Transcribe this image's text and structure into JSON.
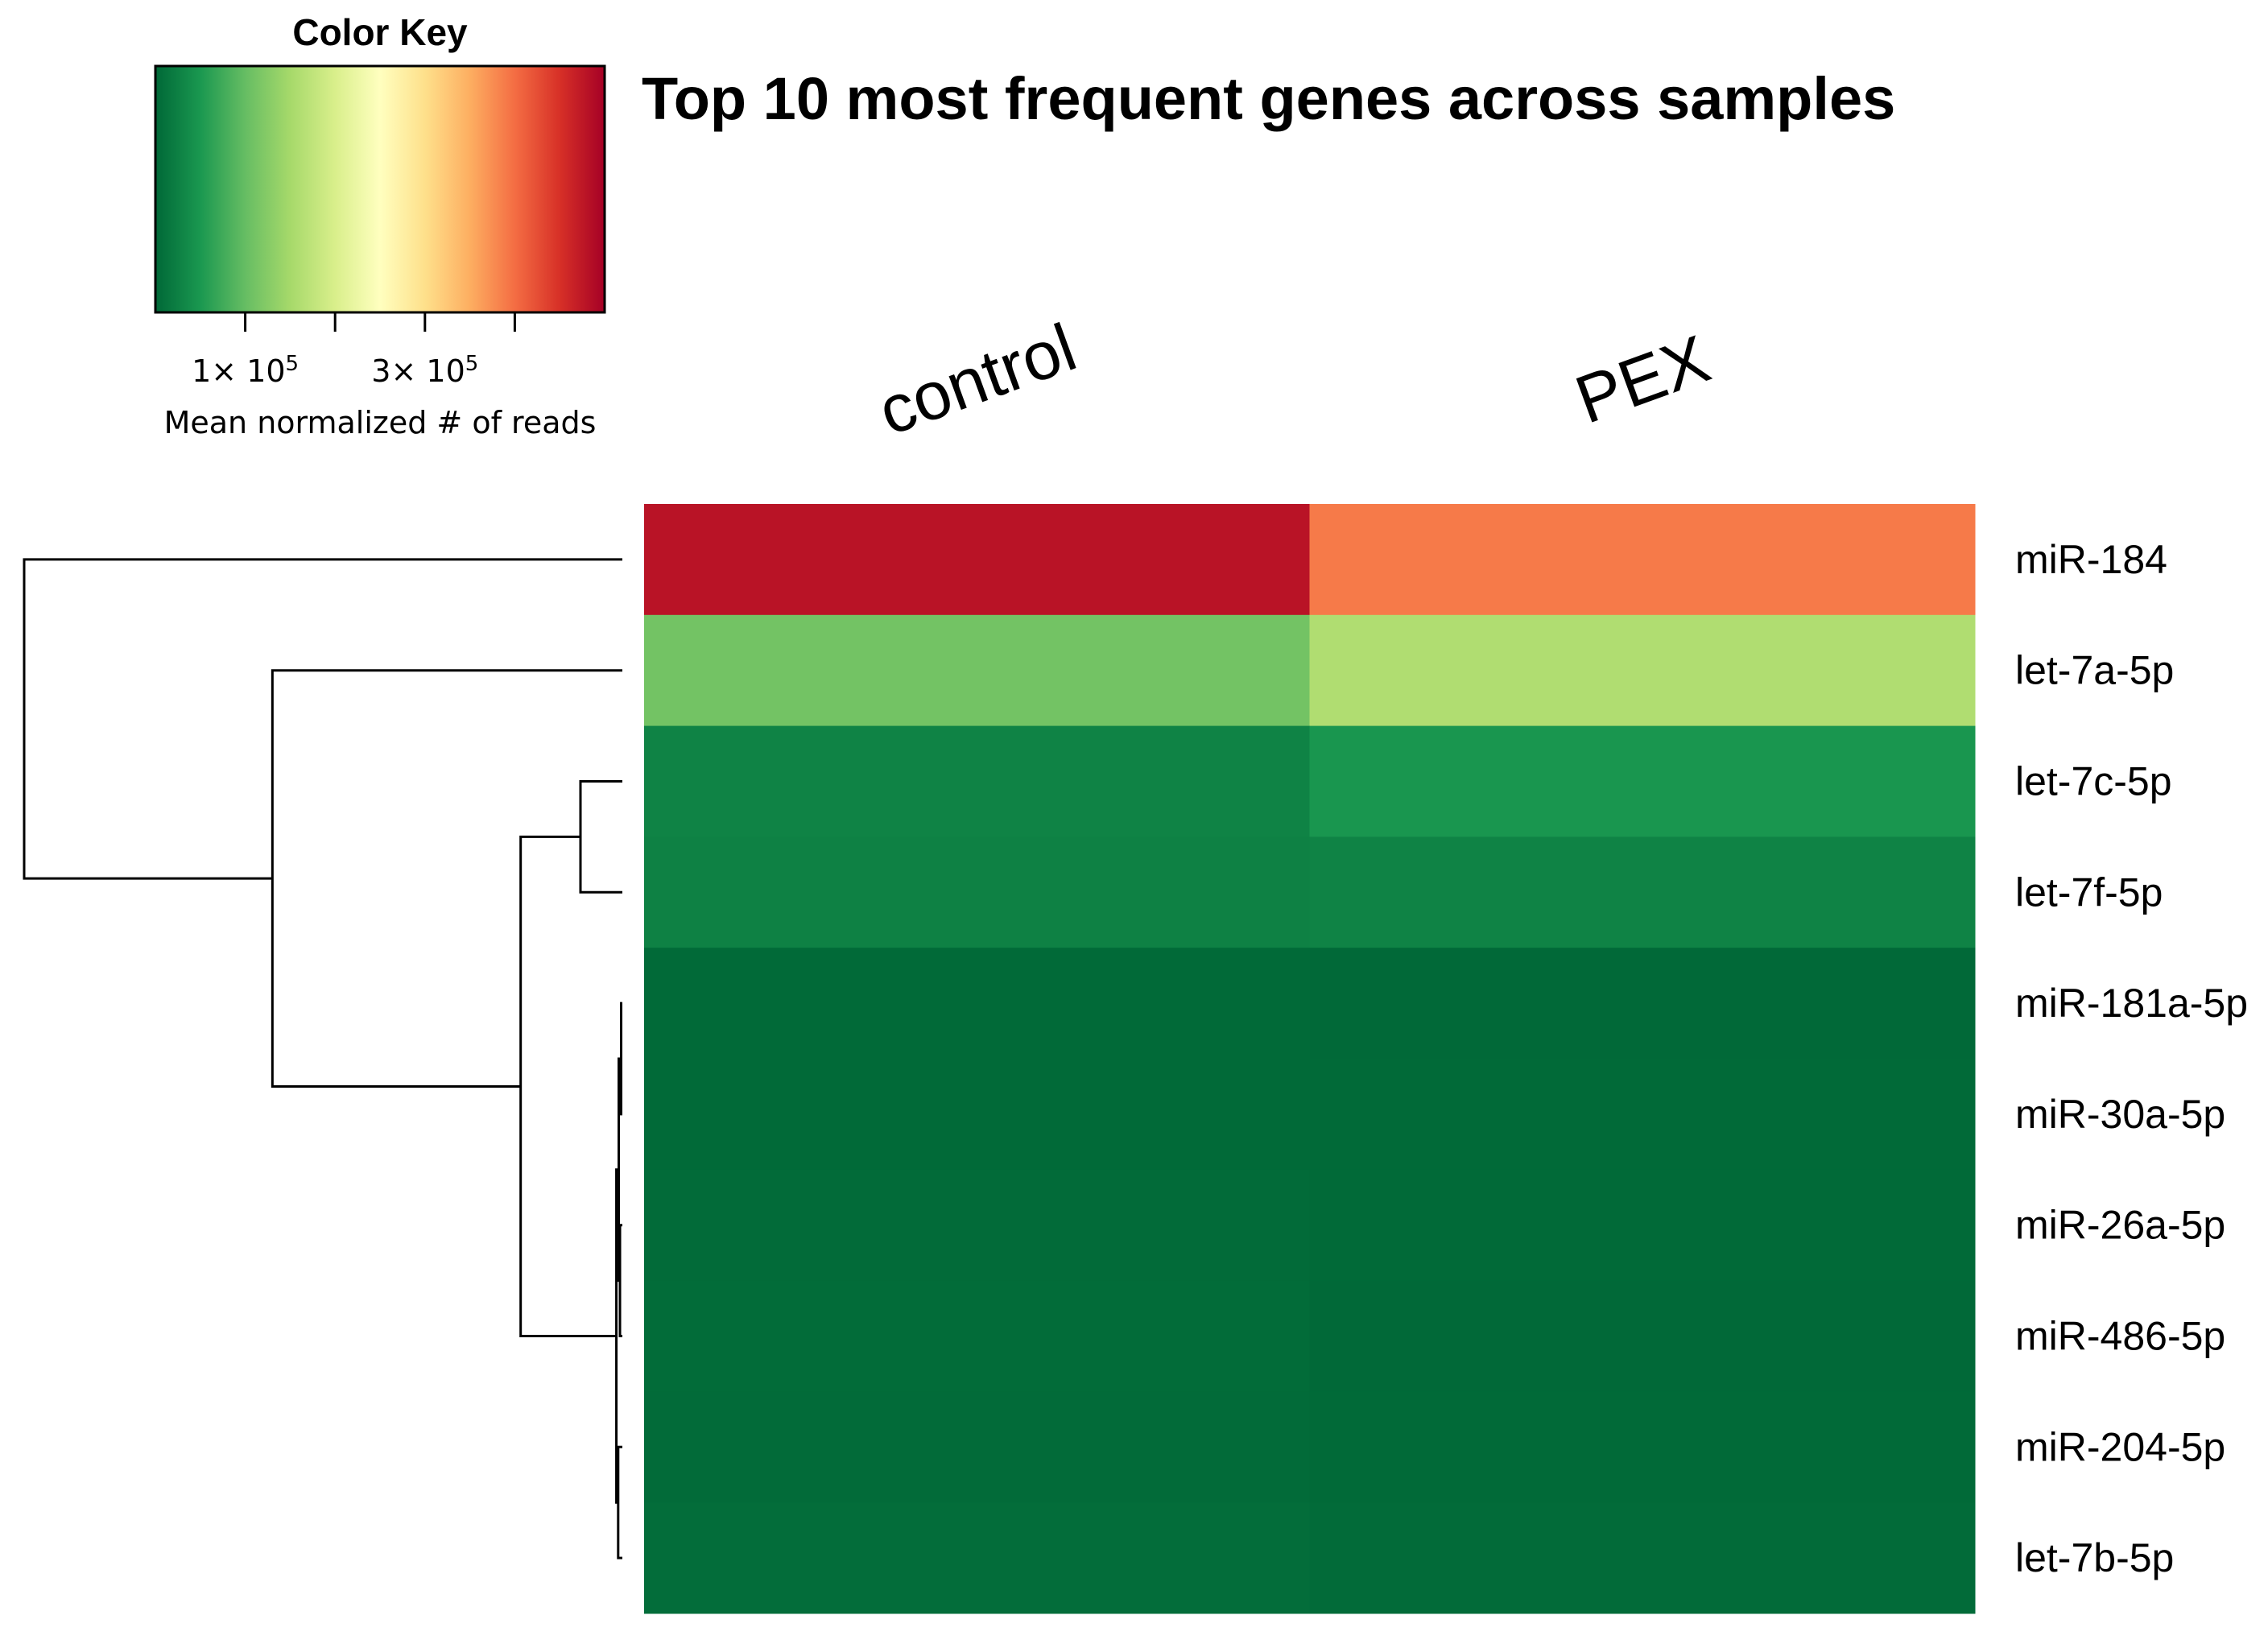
{
  "chart_data": {
    "type": "heatmap",
    "title": "Top 10 most frequent genes across samples",
    "columns": [
      "control",
      "PEX"
    ],
    "rows": [
      "miR-184",
      "let-7a-5p",
      "let-7c-5p",
      "let-7f-5p",
      "miR-181a-5p",
      "miR-30a-5p",
      "miR-26a-5p",
      "miR-486-5p",
      "miR-204-5p",
      "let-7b-5p"
    ],
    "values": [
      [
        480000,
        390000
      ],
      [
        110000,
        160000
      ],
      [
        28000,
        48000
      ],
      [
        26000,
        28000
      ],
      [
        2000,
        1500
      ],
      [
        2500,
        2000
      ],
      [
        3000,
        2500
      ],
      [
        4000,
        1000
      ],
      [
        3500,
        2500
      ],
      [
        5000,
        3500
      ]
    ],
    "color_key": {
      "title": "Color Key",
      "xlabel": "Mean normalized # of reads",
      "range": [
        0,
        500000
      ],
      "tick_values": [
        100000,
        300000
      ],
      "tick_labels": [
        {
          "mantissa": "1",
          "times": "×",
          "base": "10",
          "exp": "5"
        },
        {
          "mantissa": "3",
          "times": "×",
          "base": "10",
          "exp": "5"
        }
      ],
      "minor_ticks": [
        100000,
        200000,
        300000,
        400000
      ],
      "colors": [
        "#006837",
        "#1a9850",
        "#66bd63",
        "#a6d96a",
        "#d9ef8b",
        "#ffffbf",
        "#fee08b",
        "#fdae61",
        "#f46d43",
        "#d73027",
        "#a50026"
      ]
    },
    "dendrogram": {
      "merges": [
        {
          "pair": [
            4,
            5
          ],
          "height": 0.002
        },
        {
          "pair": [
            6,
            7
          ],
          "height": 0.004
        },
        {
          "pair": [
            8,
            9
          ],
          "height": 0.007
        },
        {
          "pair": [
            "m1",
            "m2"
          ],
          "height": 0.006
        },
        {
          "pair": [
            "m4",
            "m3"
          ],
          "height": 0.01
        },
        {
          "pair": [
            2,
            3
          ],
          "height": 0.07
        },
        {
          "pair": [
            "m6",
            "m5"
          ],
          "height": 0.17
        },
        {
          "pair": [
            1,
            "m7"
          ],
          "height": 0.585
        },
        {
          "pair": [
            0,
            "m8"
          ],
          "height": 1.0
        }
      ]
    }
  }
}
